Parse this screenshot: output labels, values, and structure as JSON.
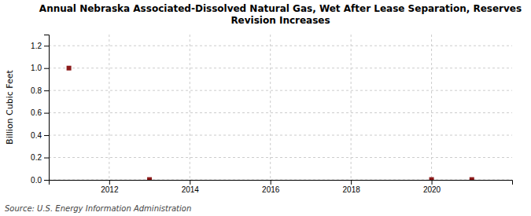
{
  "chart_data": {
    "type": "scatter",
    "title": "Annual Nebraska Associated-Dissolved Natural Gas, Wet After Lease Separation, Reserves\nRevision Increases",
    "ylabel": "Billion Cubic Feet",
    "annotation": "Source: U.S. Energy Information Administration",
    "x": [
      2011,
      2013,
      2020,
      2021
    ],
    "values": [
      1.0,
      0.003,
      0.003,
      0.003
    ],
    "color": "#8b1a1a",
    "marker": "square",
    "xlim": [
      2010.5,
      2022
    ],
    "xticks": [
      2012,
      2014,
      2016,
      2018,
      2020
    ],
    "ylim": [
      0.0,
      1.3
    ],
    "yticks": [
      {
        "value": 0.0,
        "label": "0.0"
      },
      0.2,
      0.4,
      0.6,
      0.8,
      {
        "value": 1.0,
        "label": "1.0"
      },
      1.2
    ],
    "grid": true
  }
}
